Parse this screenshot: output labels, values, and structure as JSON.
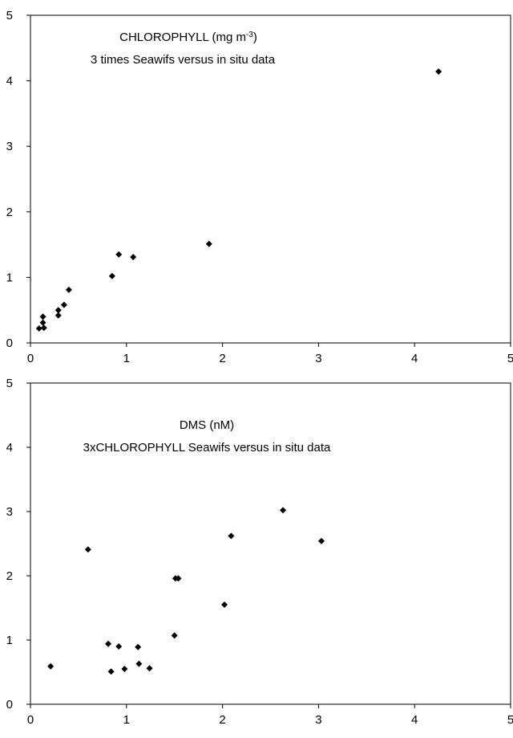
{
  "chart_data": [
    {
      "type": "scatter",
      "title": [
        "CHLOROPHYLL (mg m",
        "-3",
        ")"
      ],
      "subtitle": "3 times Seawifs versus in situ data",
      "color": "#000000",
      "xlim": [
        0,
        5
      ],
      "ylim": [
        0,
        5
      ],
      "xticks": [
        0,
        1,
        2,
        3,
        4,
        5
      ],
      "yticks": [
        0,
        1,
        2,
        3,
        4,
        5
      ],
      "x": [
        4.25,
        1.86,
        0.92,
        1.07,
        0.85,
        0.4,
        0.35,
        0.29,
        0.29,
        0.13,
        0.13,
        0.09,
        0.14
      ],
      "values": [
        4.14,
        1.51,
        1.35,
        1.31,
        1.02,
        0.81,
        0.58,
        0.5,
        0.42,
        0.4,
        0.31,
        0.22,
        0.23
      ]
    },
    {
      "type": "scatter",
      "title": [
        "DMS (nM)"
      ],
      "subtitle": "3xCHLOROPHYLL Seawifs versus in situ data",
      "color": "#000000",
      "xlim": [
        0,
        5
      ],
      "ylim": [
        0,
        5
      ],
      "xticks": [
        0,
        1,
        2,
        3,
        4,
        5
      ],
      "yticks": [
        0,
        1,
        2,
        3,
        4,
        5
      ],
      "x": [
        0.6,
        2.09,
        2.63,
        3.03,
        1.51,
        1.54,
        2.02,
        1.5,
        0.81,
        0.92,
        1.12,
        0.21,
        0.84,
        0.98,
        1.13,
        1.24
      ],
      "values": [
        2.41,
        2.62,
        3.02,
        2.54,
        1.96,
        1.96,
        1.55,
        1.07,
        0.94,
        0.9,
        0.89,
        0.59,
        0.51,
        0.55,
        0.63,
        0.56
      ]
    }
  ]
}
